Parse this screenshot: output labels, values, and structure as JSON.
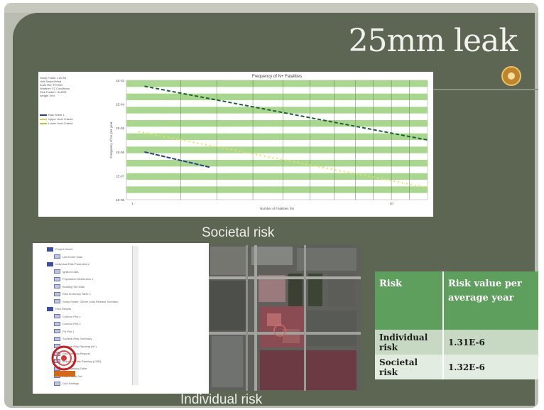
{
  "slide": {
    "title": "25mm leak",
    "captions": {
      "societal": "Societal risk",
      "individual": "Individual risk"
    }
  },
  "fn_chart": {
    "title": "Frequency of N+ Fatalities",
    "info_lines": [
      "Study Folder 1.80.53",
      "Unit Sealed blind",
      "Audit Ref: P97000",
      "Weather: F2 Conditions",
      "Risk Folder1: Set033",
      "Weight Text"
    ],
    "legend": [
      {
        "label": "Risk Sheet 1",
        "color": "#2c3e8c"
      },
      {
        "label": "Upper Limit Criteria",
        "color": "#cfd060"
      },
      {
        "label": "Lower Limit Criteria",
        "color": "#a6d04a"
      }
    ],
    "ytick_labels": [
      "1E-03",
      "1E-04",
      "1E-05",
      "1E-06",
      "1E-07",
      "1E-08"
    ],
    "xtick_labels": [
      "1",
      "10"
    ],
    "ylabel": "Frequency of N+ per year",
    "xlabel": "Number of Fatalities (N)"
  },
  "tree": {
    "items": [
      {
        "label": "Project Model",
        "icon": "folder-icon"
      },
      {
        "label": "Unit Event Data",
        "icon": "document-icon"
      },
      {
        "label": "Individual Risk Parameters",
        "icon": "folder-icon"
      },
      {
        "label": "Ignition Data",
        "icon": "document-icon"
      },
      {
        "label": "Population Distribution 1",
        "icon": "document-icon"
      },
      {
        "label": "Building Set Data",
        "icon": "document-icon"
      },
      {
        "label": "Risk Summary Table 1",
        "icon": "document-icon"
      },
      {
        "label": "Study Folder: 25mm Leak Release Scenario",
        "icon": "document-icon"
      },
      {
        "label": "Risk Results",
        "icon": "folder-icon"
      },
      {
        "label": "Contour Plot 1",
        "icon": "document-icon"
      },
      {
        "label": "Contour Plot 2",
        "icon": "document-icon"
      },
      {
        "label": "FN Plot 1",
        "icon": "document-icon"
      },
      {
        "label": "Societal Risk Summary",
        "icon": "document-icon"
      },
      {
        "label": "Societal Risk Ranking (N+)",
        "icon": "document-icon"
      },
      {
        "label": "Risk Ranking Reports",
        "icon": "document-icon"
      },
      {
        "label": "Individual Risk Ranking (LSIR)",
        "icon": "document-icon"
      },
      {
        "label": "Risk Ranking Table",
        "icon": "document-icon"
      },
      {
        "label": "Risk Points Set",
        "icon": "document-icon"
      },
      {
        "label": "Grid Settings",
        "icon": "document-icon"
      }
    ]
  },
  "table": {
    "headers": [
      "Risk",
      "Risk value per average year"
    ],
    "rows": [
      [
        "Individual risk",
        "1.31E-6"
      ],
      [
        "Societal risk",
        "1.32E-6"
      ]
    ]
  }
}
